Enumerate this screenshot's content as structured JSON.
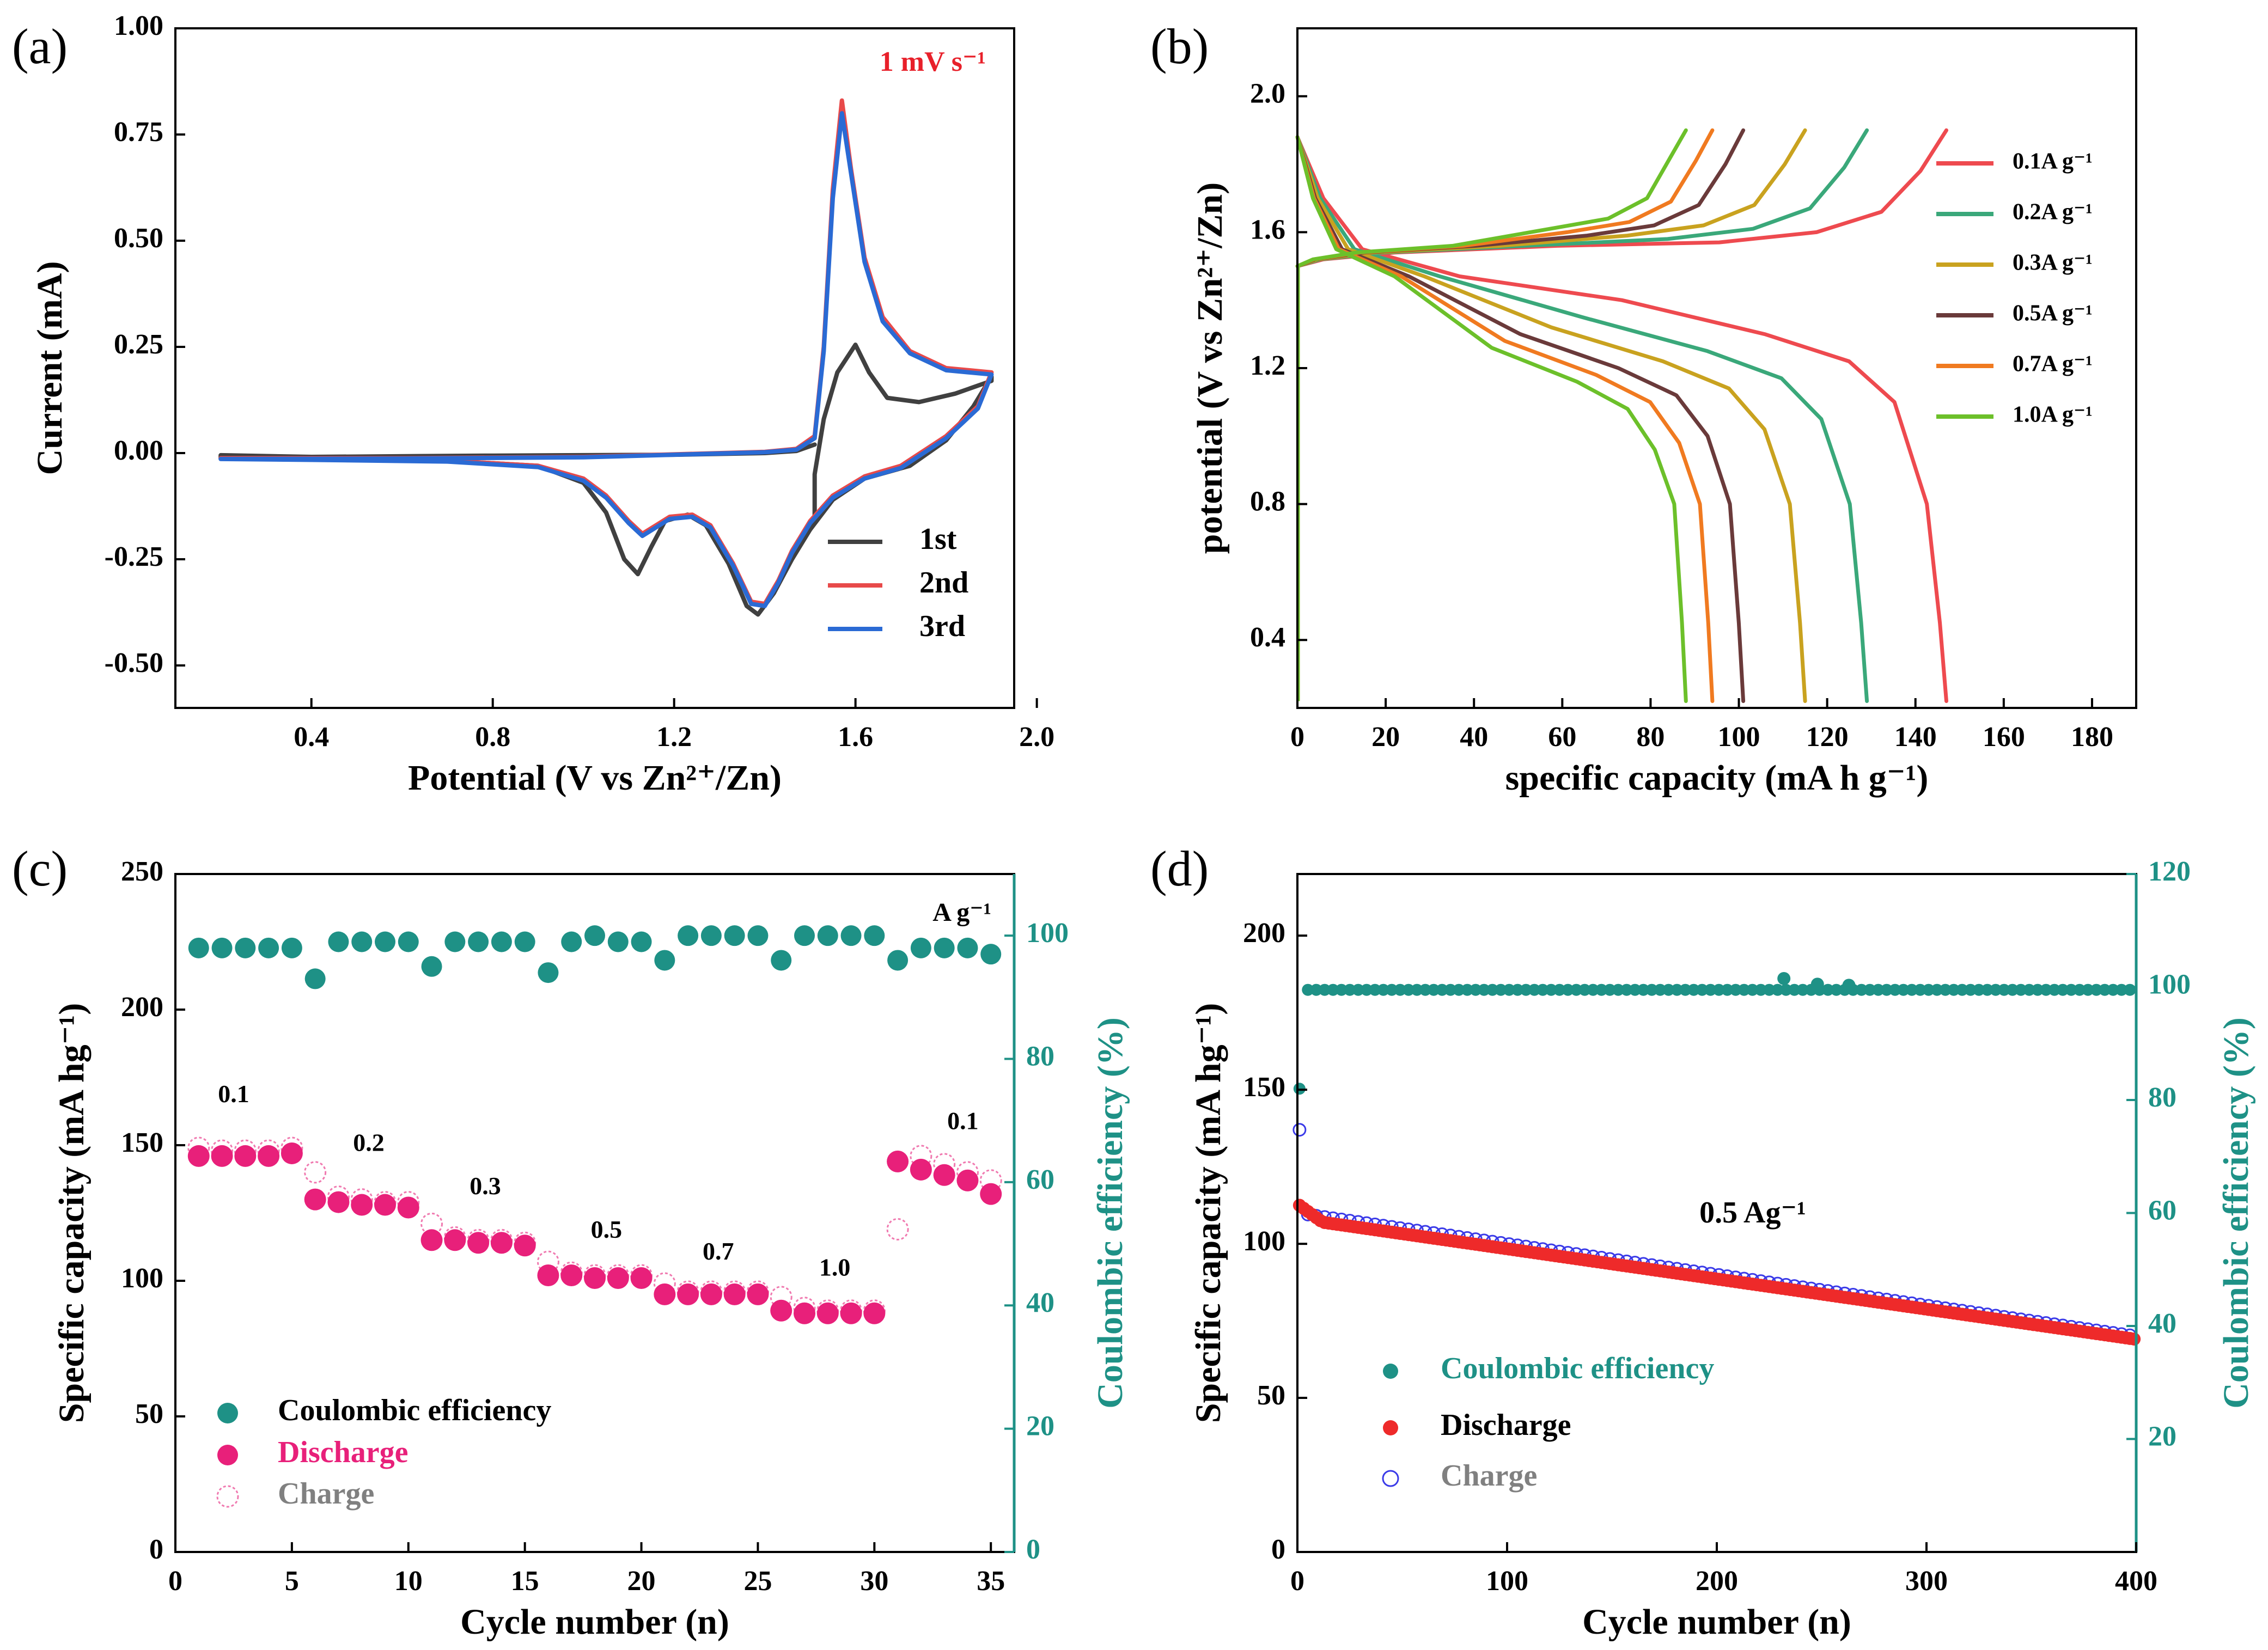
{
  "panel_labels": [
    "(a)",
    "(b)",
    "(c)",
    "(d)"
  ],
  "chart_data": [
    {
      "id": "a",
      "type": "line",
      "title": "",
      "annotation": "1 mV s⁻¹",
      "xlabel": "Potential (V vs Zn²⁺/Zn)",
      "ylabel": "Current (mA)",
      "xlim": [
        0.1,
        1.95
      ],
      "ylim": [
        -0.6,
        1.0
      ],
      "xticks": [
        "0.4",
        "0.8",
        "1.2",
        "1.6",
        "2.0"
      ],
      "yticks": [
        "1.00",
        "0.75",
        "0.50",
        "0.25",
        "0.00",
        "-0.25",
        "-0.50"
      ],
      "legend": [
        "1st",
        "2nd",
        "3rd"
      ],
      "series": [
        {
          "name": "1st",
          "color": "#404040",
          "points": [
            [
              1.51,
              -0.15
            ],
            [
              1.51,
              -0.05
            ],
            [
              1.53,
              0.08
            ],
            [
              1.56,
              0.19
            ],
            [
              1.6,
              0.255
            ],
            [
              1.63,
              0.19
            ],
            [
              1.67,
              0.13
            ],
            [
              1.74,
              0.12
            ],
            [
              1.82,
              0.14
            ],
            [
              1.9,
              0.17
            ],
            [
              1.9,
              0.18
            ],
            [
              1.86,
              0.11
            ],
            [
              1.8,
              0.03
            ],
            [
              1.72,
              -0.03
            ],
            [
              1.62,
              -0.06
            ],
            [
              1.55,
              -0.11
            ],
            [
              1.5,
              -0.18
            ],
            [
              1.46,
              -0.25
            ],
            [
              1.42,
              -0.33
            ],
            [
              1.385,
              -0.38
            ],
            [
              1.36,
              -0.36
            ],
            [
              1.32,
              -0.26
            ],
            [
              1.27,
              -0.17
            ],
            [
              1.23,
              -0.145
            ],
            [
              1.18,
              -0.16
            ],
            [
              1.15,
              -0.22
            ],
            [
              1.12,
              -0.285
            ],
            [
              1.09,
              -0.25
            ],
            [
              1.05,
              -0.14
            ],
            [
              1.0,
              -0.07
            ],
            [
              0.9,
              -0.03
            ],
            [
              0.7,
              -0.018
            ],
            [
              0.4,
              -0.014
            ],
            [
              0.2,
              -0.012
            ],
            [
              0.2,
              -0.005
            ],
            [
              0.4,
              -0.009
            ],
            [
              0.8,
              -0.006
            ],
            [
              1.2,
              -0.004
            ],
            [
              1.4,
              0.0
            ],
            [
              1.47,
              0.005
            ],
            [
              1.51,
              0.02
            ]
          ]
        },
        {
          "name": "2nd",
          "color": "#e84a4a",
          "points": [
            [
              0.2,
              -0.012
            ],
            [
              0.6,
              -0.012
            ],
            [
              1.0,
              -0.009
            ],
            [
              1.4,
              0.003
            ],
            [
              1.47,
              0.01
            ],
            [
              1.51,
              0.04
            ],
            [
              1.53,
              0.25
            ],
            [
              1.55,
              0.62
            ],
            [
              1.57,
              0.83
            ],
            [
              1.59,
              0.67
            ],
            [
              1.62,
              0.46
            ],
            [
              1.66,
              0.32
            ],
            [
              1.72,
              0.24
            ],
            [
              1.8,
              0.2
            ],
            [
              1.9,
              0.19
            ],
            [
              1.9,
              0.19
            ],
            [
              1.87,
              0.11
            ],
            [
              1.8,
              0.04
            ],
            [
              1.7,
              -0.03
            ],
            [
              1.62,
              -0.055
            ],
            [
              1.55,
              -0.1
            ],
            [
              1.5,
              -0.16
            ],
            [
              1.46,
              -0.23
            ],
            [
              1.43,
              -0.3
            ],
            [
              1.4,
              -0.355
            ],
            [
              1.37,
              -0.35
            ],
            [
              1.33,
              -0.26
            ],
            [
              1.28,
              -0.17
            ],
            [
              1.24,
              -0.145
            ],
            [
              1.19,
              -0.15
            ],
            [
              1.16,
              -0.17
            ],
            [
              1.13,
              -0.19
            ],
            [
              1.1,
              -0.16
            ],
            [
              1.05,
              -0.1
            ],
            [
              1.0,
              -0.06
            ],
            [
              0.9,
              -0.03
            ],
            [
              0.7,
              -0.018
            ],
            [
              0.4,
              -0.014
            ],
            [
              0.2,
              -0.012
            ]
          ]
        },
        {
          "name": "3rd",
          "color": "#2a6ad4",
          "points": [
            [
              0.2,
              -0.014
            ],
            [
              0.6,
              -0.013
            ],
            [
              1.0,
              -0.01
            ],
            [
              1.4,
              0.002
            ],
            [
              1.47,
              0.008
            ],
            [
              1.51,
              0.035
            ],
            [
              1.53,
              0.24
            ],
            [
              1.55,
              0.6
            ],
            [
              1.57,
              0.8
            ],
            [
              1.59,
              0.66
            ],
            [
              1.62,
              0.45
            ],
            [
              1.66,
              0.31
            ],
            [
              1.72,
              0.235
            ],
            [
              1.8,
              0.195
            ],
            [
              1.9,
              0.185
            ],
            [
              1.9,
              0.185
            ],
            [
              1.87,
              0.105
            ],
            [
              1.8,
              0.035
            ],
            [
              1.7,
              -0.035
            ],
            [
              1.62,
              -0.06
            ],
            [
              1.55,
              -0.105
            ],
            [
              1.5,
              -0.165
            ],
            [
              1.46,
              -0.235
            ],
            [
              1.43,
              -0.305
            ],
            [
              1.4,
              -0.36
            ],
            [
              1.37,
              -0.355
            ],
            [
              1.33,
              -0.265
            ],
            [
              1.28,
              -0.175
            ],
            [
              1.24,
              -0.15
            ],
            [
              1.19,
              -0.155
            ],
            [
              1.16,
              -0.175
            ],
            [
              1.13,
              -0.195
            ],
            [
              1.1,
              -0.165
            ],
            [
              1.05,
              -0.105
            ],
            [
              1.0,
              -0.065
            ],
            [
              0.9,
              -0.033
            ],
            [
              0.7,
              -0.02
            ],
            [
              0.4,
              -0.016
            ],
            [
              0.2,
              -0.014
            ]
          ]
        }
      ]
    },
    {
      "id": "b",
      "type": "line",
      "xlabel": "specific capacity (mA h g⁻¹)",
      "ylabel": "potential (V vs Zn²⁺/Zn)",
      "xlim": [
        0,
        190
      ],
      "ylim": [
        0.2,
        2.2
      ],
      "xticks": [
        "0",
        "20",
        "40",
        "60",
        "80",
        "100",
        "120",
        "140",
        "160",
        "180"
      ],
      "yticks": [
        "2.0",
        "1.6",
        "1.2",
        "0.8",
        "0.4"
      ],
      "legend": [
        "0.1A g⁻¹",
        "0.2A g⁻¹",
        "0.3A g⁻¹",
        "0.5A g⁻¹",
        "0.7A g⁻¹",
        "1.0A g⁻¹"
      ],
      "series": [
        {
          "name": "0.1A g⁻¹",
          "color": "#ee4a4f",
          "capacity": 147,
          "plateau_charge": 1.6,
          "plateau_discharge": 1.3
        },
        {
          "name": "0.2A g⁻¹",
          "color": "#3aa87a",
          "capacity": 129,
          "plateau_charge": 1.61,
          "plateau_discharge": 1.25
        },
        {
          "name": "0.3A g⁻¹",
          "color": "#c9a21f",
          "capacity": 115,
          "plateau_charge": 1.62,
          "plateau_discharge": 1.22
        },
        {
          "name": "0.5A g⁻¹",
          "color": "#6a3a3a",
          "capacity": 101,
          "plateau_charge": 1.62,
          "plateau_discharge": 1.2
        },
        {
          "name": "0.7A g⁻¹",
          "color": "#f07a20",
          "capacity": 94,
          "plateau_charge": 1.63,
          "plateau_discharge": 1.18
        },
        {
          "name": "1.0A g⁻¹",
          "color": "#6cc02a",
          "capacity": 88,
          "plateau_charge": 1.64,
          "plateau_discharge": 1.16
        }
      ]
    },
    {
      "id": "c",
      "type": "scatter",
      "xlabel": "Cycle number (n)",
      "ylabel": "Specific capacity (mA hg⁻¹)",
      "y2label": "Coulombic efficiency (%)",
      "xlim": [
        0,
        36
      ],
      "ylim": [
        0,
        250
      ],
      "y2lim": [
        0,
        110
      ],
      "xticks": [
        "0",
        "5",
        "10",
        "15",
        "20",
        "25",
        "30",
        "35"
      ],
      "yticks": [
        "250",
        "200",
        "150",
        "100",
        "50",
        "0"
      ],
      "y2ticks": [
        "100",
        "80",
        "60",
        "40",
        "20",
        "0"
      ],
      "unit_label": "A g⁻¹",
      "rate_labels": [
        {
          "text": "0.1",
          "x": 2.5,
          "y": 168
        },
        {
          "text": "0.2",
          "x": 8.3,
          "y": 150
        },
        {
          "text": "0.3",
          "x": 13.3,
          "y": 134
        },
        {
          "text": "0.5",
          "x": 18.5,
          "y": 118
        },
        {
          "text": "0.7",
          "x": 23.3,
          "y": 110
        },
        {
          "text": "1.0",
          "x": 28.3,
          "y": 104
        },
        {
          "text": "0.1",
          "x": 33.8,
          "y": 158
        }
      ],
      "legend": [
        "Coulombic efficiency",
        "Discharge",
        "Charge"
      ],
      "series": [
        {
          "name": "Discharge",
          "color": "#e8207a",
          "x": [
            1,
            2,
            3,
            4,
            5,
            6,
            7,
            8,
            9,
            10,
            11,
            12,
            13,
            14,
            15,
            16,
            17,
            18,
            19,
            20,
            21,
            22,
            23,
            24,
            25,
            26,
            27,
            28,
            29,
            30,
            31,
            32,
            33,
            34,
            35
          ],
          "values": [
            146,
            146,
            146,
            146,
            147,
            130,
            129,
            128,
            128,
            127,
            115,
            115,
            114,
            114,
            113,
            102,
            102,
            101,
            101,
            101,
            95,
            95,
            95,
            95,
            95,
            89,
            88,
            88,
            88,
            88,
            144,
            141,
            139,
            137,
            132
          ]
        },
        {
          "name": "Charge",
          "color": "#f07ab0",
          "x": [
            1,
            2,
            3,
            4,
            5,
            6,
            7,
            8,
            9,
            10,
            11,
            12,
            13,
            14,
            15,
            16,
            17,
            18,
            19,
            20,
            21,
            22,
            23,
            24,
            25,
            26,
            27,
            28,
            29,
            30,
            31,
            32,
            33,
            34,
            35
          ],
          "values": [
            149,
            148,
            148,
            148,
            149,
            140,
            131,
            130,
            129,
            129,
            121,
            116,
            115,
            115,
            114,
            107,
            103,
            102,
            102,
            102,
            99,
            96,
            96,
            96,
            96,
            94,
            90,
            89,
            89,
            89,
            119,
            146,
            143,
            140,
            137
          ]
        },
        {
          "name": "Coulombic efficiency",
          "color": "#1e9186",
          "axis": "right",
          "x": [
            1,
            2,
            3,
            4,
            5,
            6,
            7,
            8,
            9,
            10,
            11,
            12,
            13,
            14,
            15,
            16,
            17,
            18,
            19,
            20,
            21,
            22,
            23,
            24,
            25,
            26,
            27,
            28,
            29,
            30,
            31,
            32,
            33,
            34,
            35
          ],
          "values": [
            98,
            98,
            98,
            98,
            98,
            93,
            99,
            99,
            99,
            99,
            95,
            99,
            99,
            99,
            99,
            94,
            99,
            100,
            99,
            99,
            96,
            100,
            100,
            100,
            100,
            96,
            100,
            100,
            100,
            100,
            96,
            98,
            98,
            98,
            97
          ]
        }
      ]
    },
    {
      "id": "d",
      "type": "scatter",
      "xlabel": "Cycle number (n)",
      "ylabel": "Specific capacity (mA hg⁻¹)",
      "y2label": "Coulombic efficiency (%)",
      "xlim": [
        0,
        400
      ],
      "ylim": [
        0,
        220
      ],
      "y2lim": [
        0,
        120
      ],
      "xticks": [
        "0",
        "100",
        "200",
        "300",
        "400"
      ],
      "yticks": [
        "200",
        "150",
        "100",
        "50",
        "0"
      ],
      "y2ticks": [
        "120",
        "100",
        "80",
        "60",
        "40",
        "20"
      ],
      "annotation": "0.5 Ag⁻¹",
      "legend": [
        "Coulombic efficiency",
        "Discharge",
        "Charge"
      ],
      "series": [
        {
          "name": "Discharge",
          "color": "#ee2a2a",
          "start": 113,
          "after_activation": 107,
          "end": 69,
          "cycles": 400
        },
        {
          "name": "Charge",
          "color": "#3a3ae8",
          "first": 137,
          "start": 110,
          "end": 70,
          "cycles": 400
        },
        {
          "name": "Coulombic efficiency",
          "color": "#1e9186",
          "axis": "right",
          "first": 82,
          "steady": 99.5,
          "outliers": [
            [
              232,
              101.5
            ],
            [
              248,
              100.5
            ],
            [
              263,
              100.3
            ]
          ],
          "cycles": 400
        }
      ]
    }
  ]
}
